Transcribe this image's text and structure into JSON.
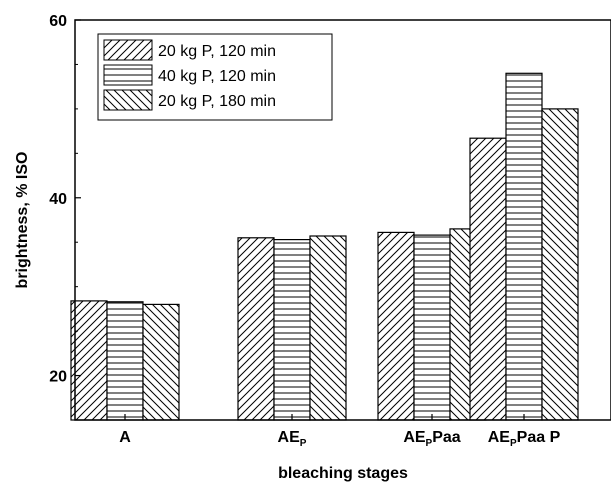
{
  "chart_data": {
    "type": "bar",
    "categories": [
      {
        "main": "A",
        "sub": "",
        "rest": ""
      },
      {
        "main": "AE",
        "sub": "P",
        "rest": ""
      },
      {
        "main": "AE",
        "sub": "P",
        "rest": "Paa"
      },
      {
        "main": "AE",
        "sub": "P",
        "rest": "Paa P"
      }
    ],
    "series": [
      {
        "name": "20 kg P, 120 min",
        "pattern": "diag-right",
        "values": [
          28.4,
          35.5,
          36.1,
          46.7
        ]
      },
      {
        "name": "40 kg P, 120 min",
        "pattern": "horizontal",
        "values": [
          28.3,
          35.3,
          35.8,
          54.0
        ]
      },
      {
        "name": "20 kg P, 180 min",
        "pattern": "diag-left",
        "values": [
          28.0,
          35.7,
          36.5,
          50.0
        ]
      }
    ],
    "xlabel": "bleaching stages",
    "ylabel": "brightness, % ISO",
    "ylim": [
      15,
      60
    ],
    "yticks": [
      20,
      40,
      60
    ],
    "legend_position": "top-left",
    "grid": false,
    "colors": {
      "fill": "#ffffff",
      "stroke": "#000000"
    }
  }
}
